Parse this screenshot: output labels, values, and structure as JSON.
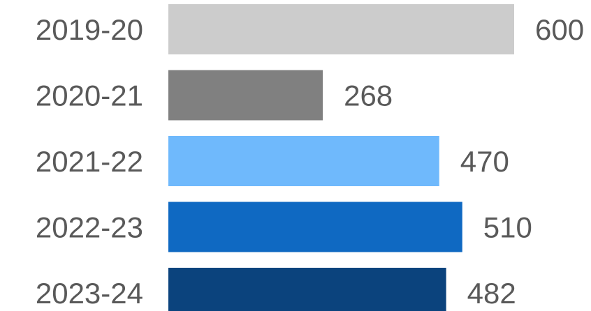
{
  "chart_data": {
    "type": "bar",
    "orientation": "horizontal",
    "categories": [
      "2019-20",
      "2020-21",
      "2021-22",
      "2022-23",
      "2023-24"
    ],
    "values": [
      600,
      268,
      470,
      510,
      482
    ],
    "value_labels": [
      "600",
      "268",
      "470",
      "510",
      "482"
    ],
    "colors": [
      "#cccccc",
      "#808080",
      "#6fb9fc",
      "#0f69c2",
      "#0b437d"
    ],
    "title": "",
    "xlabel": "",
    "ylabel": "",
    "xlim": [
      0,
      600
    ],
    "grid": false,
    "legend": "none"
  }
}
